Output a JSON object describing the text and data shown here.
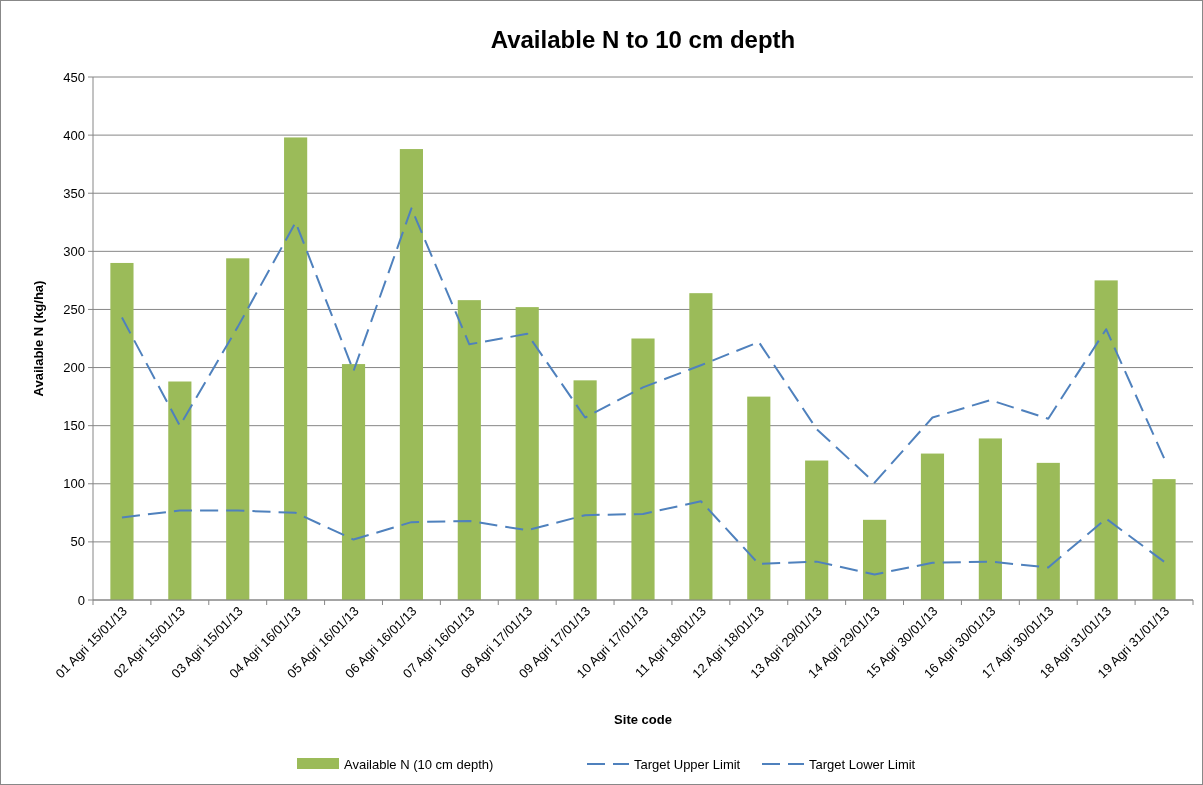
{
  "chart_data": {
    "type": "bar",
    "title": "Available N to 10 cm depth",
    "xlabel": "Site code",
    "ylabel": "Available N (kg/ha)",
    "categories": [
      "01 Agri 15/01/13",
      "02 Agri 15/01/13",
      "03 Agri 15/01/13",
      "04 Agri 16/01/13",
      "05 Agri 16/01/13",
      "06 Agri 16/01/13",
      "07 Agri 16/01/13",
      "08 Agri 17/01/13",
      "09 Agri 17/01/13",
      "10 Agri 17/01/13",
      "11 Agri 18/01/13",
      "12 Agri 18/01/13",
      "13 Agri 29/01/13",
      "14 Agri 29/01/13",
      "15 Agri 30/01/13",
      "16 Agri 30/01/13",
      "17 Agri 30/01/13",
      "18 Agri 31/01/13",
      "19 Agri 31/01/13"
    ],
    "series": [
      {
        "name": "Available N (10 cm depth)",
        "color": "#9bbb59",
        "values": [
          290,
          188,
          294,
          398,
          203,
          388,
          258,
          252,
          189,
          225,
          264,
          175,
          120,
          69,
          126,
          139,
          118,
          275,
          104
        ]
      },
      {
        "name": "Target Upper Limit",
        "type": "line",
        "line_style": "dashed",
        "color": "#4f81bd",
        "values": [
          243,
          150,
          235,
          325,
          197,
          337,
          220,
          229,
          157,
          183,
          202,
          222,
          147,
          101,
          157,
          172,
          156,
          233,
          122
        ]
      },
      {
        "name": "Target Lower Limit",
        "type": "line",
        "line_style": "dashed",
        "color": "#4f81bd",
        "values": [
          71,
          77,
          77,
          75,
          52,
          67,
          68,
          60,
          73,
          74,
          85,
          31,
          33,
          22,
          32,
          33,
          28,
          70,
          33
        ]
      }
    ],
    "ylim": [
      0,
      450
    ],
    "yticks": [
      0,
      50,
      100,
      150,
      200,
      250,
      300,
      350,
      400,
      450
    ],
    "grid": "y",
    "legend": "bottom",
    "marker": "none"
  }
}
